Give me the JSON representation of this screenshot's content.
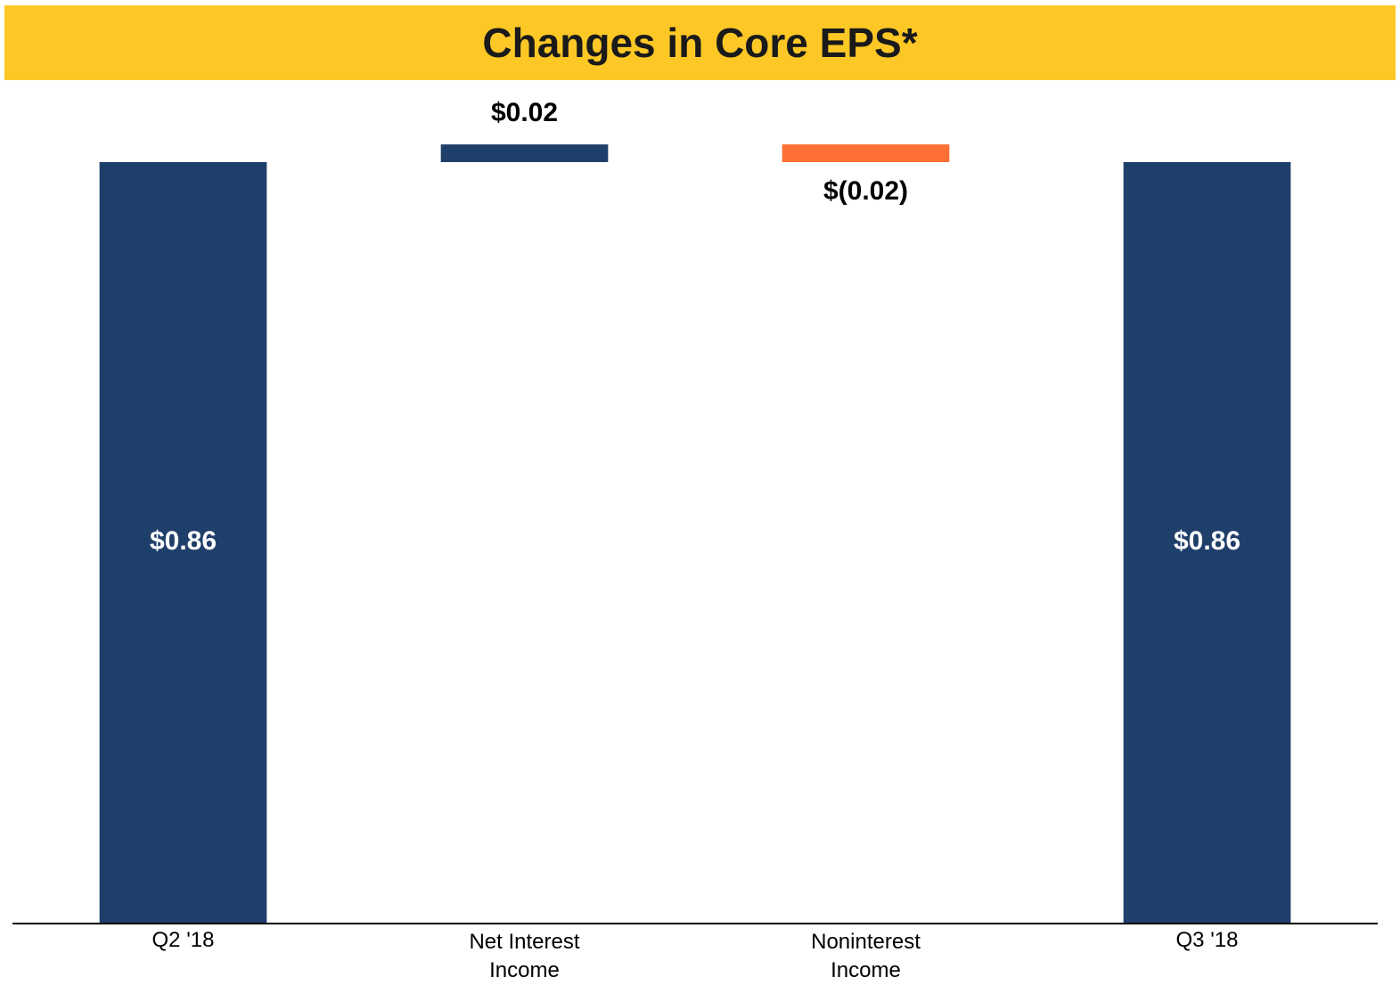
{
  "chart_data": {
    "type": "waterfall",
    "title": "Changes in Core EPS*",
    "categories": [
      "Q2 '18",
      "Net Interest\nIncome",
      "Noninterest\nIncome",
      "Q3 '18"
    ],
    "values": [
      0.86,
      0.02,
      -0.02,
      0.86
    ],
    "value_labels": [
      "$0.86",
      "$0.02",
      "$(0.02)",
      "$0.86"
    ],
    "totals": [
      true,
      false,
      false,
      true
    ],
    "colors": [
      "#1f3f6b",
      "#1f3f6b",
      "#fd6f35",
      "#1f3f6b"
    ],
    "ylim": [
      0,
      1
    ]
  }
}
